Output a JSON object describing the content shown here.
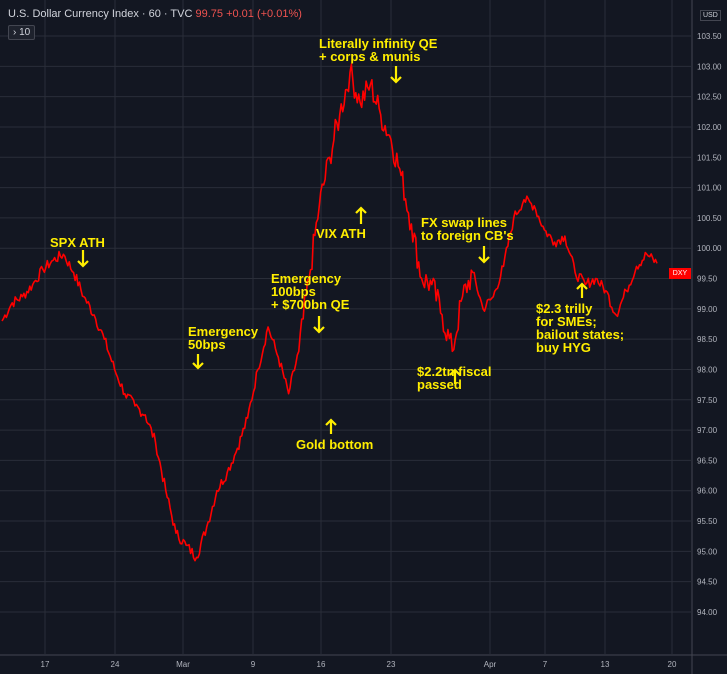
{
  "header": {
    "title": "U.S. Dollar Currency Index · 60 · TVC",
    "ohlc": "99.75 +0.01 (+0.01%)",
    "interval": "10"
  },
  "axis": {
    "currency": "USD",
    "last_label": "DXY"
  },
  "colors": {
    "background": "#131722",
    "line": "#ff0000",
    "annotation": "#ffee00",
    "grid": "#2a2e39"
  },
  "annotations": [
    "SPX ATH",
    "Emergency\n50bps",
    "Emergency\n100bps\n+ $700bn QE",
    "Gold bottom",
    "VIX ATH",
    "Literally infinity QE\n+ corps & munis",
    "FX swap lines\nto foreign CB's",
    "$2.2tn fiscal\npassed",
    "$2.3 trilly\nfor SMEs;\nbailout states;\nbuy HYG"
  ],
  "chart_data": {
    "type": "line",
    "title": "U.S. Dollar Currency Index",
    "xlabel": "",
    "ylabel": "",
    "ylim": [
      93.75,
      103.75
    ],
    "yticks": [
      94.0,
      94.5,
      95.0,
      95.5,
      96.0,
      96.5,
      97.0,
      97.5,
      98.0,
      98.5,
      99.0,
      99.5,
      100.0,
      100.5,
      101.0,
      101.5,
      102.0,
      102.5,
      103.0,
      103.5
    ],
    "ytick_labels": [
      "94.00",
      "94.50",
      "95.00",
      "95.50",
      "96.00",
      "96.50",
      "97.00",
      "97.50",
      "98.00",
      "98.50",
      "99.00",
      "99.50",
      "100.00",
      "100.50",
      "101.00",
      "101.50",
      "102.00",
      "102.50",
      "103.00",
      "103.50"
    ],
    "xticks": [
      "17",
      "24",
      "Mar",
      "9",
      "16",
      "23",
      "Apr",
      "7",
      "13",
      "20"
    ],
    "series": [
      {
        "values": [
          [
            0,
            98.8
          ],
          [
            1,
            99.1
          ],
          [
            2,
            99.2
          ],
          [
            3,
            99.4
          ],
          [
            4,
            99.65
          ],
          [
            5,
            99.8
          ],
          [
            6,
            99.9
          ],
          [
            7,
            99.6
          ],
          [
            8,
            99.2
          ],
          [
            9,
            98.9
          ],
          [
            10,
            98.5
          ],
          [
            11,
            98.0
          ],
          [
            12,
            97.6
          ],
          [
            13,
            97.4
          ],
          [
            14,
            97.25
          ],
          [
            15,
            96.8
          ],
          [
            16,
            96.0
          ],
          [
            17,
            95.3
          ],
          [
            18,
            95.1
          ],
          [
            19,
            94.9
          ],
          [
            20,
            95.4
          ],
          [
            21,
            96.0
          ],
          [
            22,
            96.3
          ],
          [
            23,
            96.7
          ],
          [
            24,
            97.2
          ],
          [
            25,
            98.0
          ],
          [
            26,
            98.7
          ],
          [
            27,
            98.2
          ],
          [
            28,
            97.6
          ],
          [
            29,
            98.3
          ],
          [
            30,
            99.5
          ],
          [
            31,
            100.7
          ],
          [
            32,
            101.5
          ],
          [
            33,
            102.2
          ],
          [
            34,
            102.9
          ],
          [
            35,
            102.4
          ],
          [
            36,
            102.7
          ],
          [
            37,
            102.2
          ],
          [
            38,
            101.8
          ],
          [
            39,
            101.2
          ],
          [
            40,
            100.4
          ],
          [
            41,
            99.5
          ],
          [
            42,
            99.4
          ],
          [
            43,
            98.9
          ],
          [
            44,
            98.3
          ],
          [
            45,
            99.2
          ],
          [
            46,
            99.6
          ],
          [
            47,
            99.0
          ],
          [
            48,
            99.2
          ],
          [
            49,
            99.7
          ],
          [
            50,
            100.5
          ],
          [
            51,
            100.8
          ],
          [
            52,
            100.7
          ],
          [
            53,
            100.3
          ],
          [
            54,
            100.1
          ],
          [
            55,
            100.2
          ],
          [
            56,
            99.6
          ],
          [
            57,
            99.4
          ],
          [
            58,
            99.5
          ],
          [
            59,
            99.3
          ],
          [
            60,
            98.9
          ],
          [
            61,
            99.3
          ],
          [
            62,
            99.7
          ],
          [
            63,
            99.9
          ],
          [
            64,
            99.75
          ]
        ]
      }
    ],
    "grid": true
  }
}
